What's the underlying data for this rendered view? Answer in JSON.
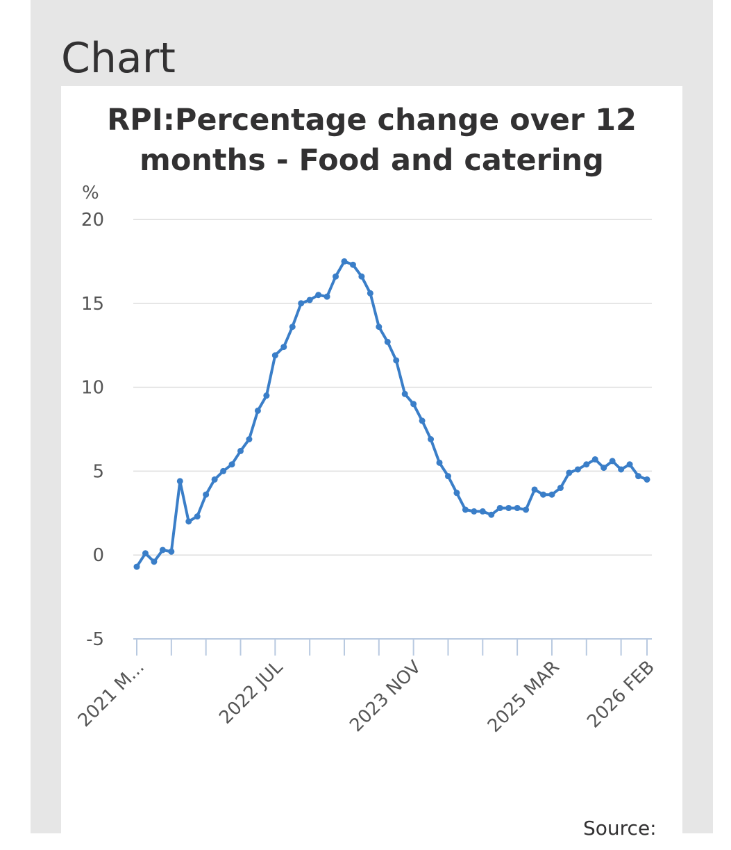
{
  "page": {
    "section_title": "Chart",
    "source_label": "Source:"
  },
  "chart_data": {
    "type": "line",
    "title": "RPI:Percentage change over 12 months - Food and catering",
    "ylabel": "%",
    "xlabel": "",
    "ylim": [
      -5,
      20
    ],
    "yticks": [
      -5,
      0,
      5,
      10,
      15,
      20
    ],
    "grid": true,
    "color": "#3a7ec8",
    "x_tick_labels": [
      {
        "label": "2021 M...",
        "index": 0
      },
      {
        "label": "2022 JUL",
        "index": 16
      },
      {
        "label": "2023 NOV",
        "index": 32
      },
      {
        "label": "2025 MAR",
        "index": 48
      },
      {
        "label": "2026 FEB",
        "index": 59
      }
    ],
    "series": [
      {
        "name": "Food and catering",
        "start": "2021 MAR",
        "end": "2026 FEB",
        "values": [
          -0.7,
          0.1,
          -0.4,
          0.3,
          0.2,
          4.4,
          2.0,
          2.3,
          3.6,
          4.5,
          5.0,
          5.4,
          6.2,
          6.9,
          8.6,
          9.5,
          11.9,
          12.4,
          13.6,
          15.0,
          15.2,
          15.5,
          15.4,
          16.6,
          17.5,
          17.3,
          16.6,
          15.6,
          13.6,
          12.7,
          11.6,
          9.6,
          9.0,
          8.0,
          6.9,
          5.5,
          4.7,
          3.7,
          2.7,
          2.6,
          2.6,
          2.4,
          2.8,
          2.8,
          2.8,
          2.7,
          3.9,
          3.6,
          3.6,
          4.0,
          4.9,
          5.1,
          5.4,
          5.7,
          5.2,
          5.6,
          5.1,
          5.4,
          4.7,
          4.5
        ]
      }
    ]
  }
}
